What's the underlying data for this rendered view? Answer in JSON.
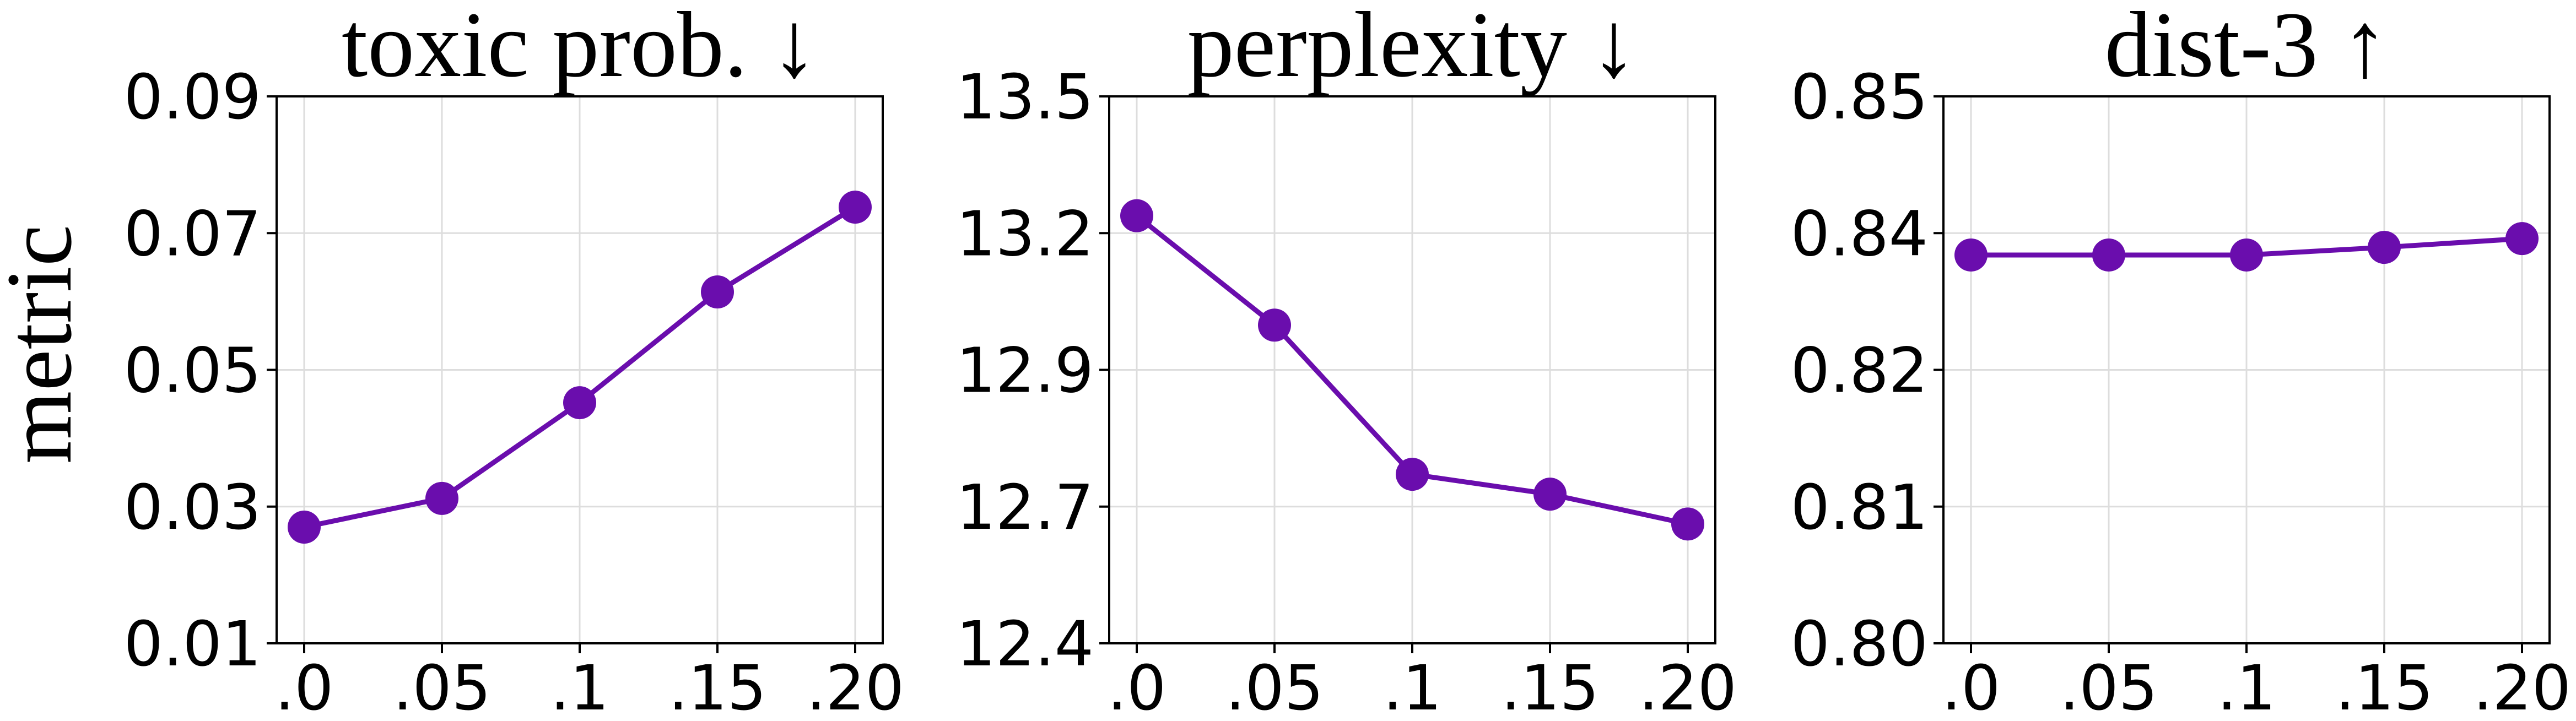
{
  "figure": {
    "ylabel": "metric",
    "line_color": "#6a0dad"
  },
  "chart_data": [
    {
      "type": "line",
      "title": "toxic prob. ↓",
      "xlabel": "",
      "ylabel": "metric",
      "categories": [
        ".0",
        ".05",
        ".1",
        ".15",
        ".20"
      ],
      "values": [
        0.027,
        0.0312,
        0.0452,
        0.0614,
        0.0738
      ],
      "ylim": [
        0.01,
        0.09
      ],
      "yticks": [
        "0.01",
        "0.03",
        "0.05",
        "0.07",
        "0.09"
      ],
      "ytick_values": [
        0.01,
        0.03,
        0.05,
        0.07,
        0.09
      ],
      "grid": true,
      "color": "#6a0dad"
    },
    {
      "type": "line",
      "title": "perplexity ↓",
      "xlabel": "",
      "ylabel": "",
      "categories": [
        ".0",
        ".05",
        ".1",
        ".15",
        ".20"
      ],
      "values": [
        13.26,
        13.04,
        12.74,
        12.7,
        12.64
      ],
      "ylim": [
        12.4,
        13.5
      ],
      "yticks": [
        "12.4",
        "12.7",
        "12.9",
        "13.2",
        "13.5"
      ],
      "ytick_values": [
        12.4,
        12.675,
        12.95,
        13.225,
        13.5
      ],
      "grid": true,
      "color": "#6a0dad"
    },
    {
      "type": "line",
      "title": "dist-3 ↑",
      "xlabel": "",
      "ylabel": "",
      "categories": [
        ".0",
        ".05",
        ".1",
        ".15",
        ".20"
      ],
      "values": [
        0.8355,
        0.8355,
        0.8355,
        0.8362,
        0.837
      ],
      "ylim": [
        0.8,
        0.85
      ],
      "yticks": [
        "0.80",
        "0.81",
        "0.82",
        "0.84",
        "0.85"
      ],
      "ytick_values": [
        0.8,
        0.8125,
        0.825,
        0.8375,
        0.85
      ],
      "grid": true,
      "color": "#6a0dad"
    }
  ]
}
